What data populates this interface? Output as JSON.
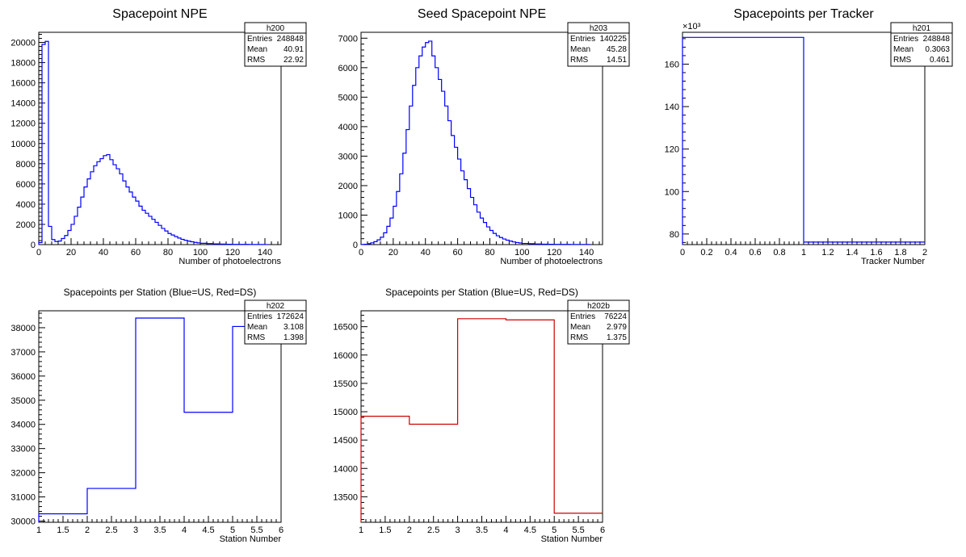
{
  "chart_data": [
    {
      "type": "histogram",
      "title": "Spacepoint NPE",
      "xlabel": "Number of photoelectrons",
      "ylabel": "",
      "xlim": [
        0,
        150
      ],
      "ylim": [
        0,
        21000
      ],
      "xticks": [
        0,
        20,
        40,
        60,
        80,
        100,
        120,
        140
      ],
      "yticks": [
        0,
        2000,
        4000,
        6000,
        8000,
        10000,
        12000,
        14000,
        16000,
        18000,
        20000
      ],
      "color": "#0000ff",
      "stats": {
        "name": "h200",
        "rows": [
          [
            "Entries",
            "248848"
          ],
          [
            "Mean",
            "40.91"
          ],
          [
            "RMS",
            "22.92"
          ]
        ]
      },
      "series": [
        {
          "x": [
            0,
            2,
            4,
            6,
            8,
            10,
            12,
            14,
            16,
            18,
            20,
            22,
            24,
            26,
            28,
            30,
            32,
            34,
            36,
            38,
            40,
            42,
            44,
            46,
            48,
            50,
            52,
            54,
            56,
            58,
            60,
            62,
            64,
            66,
            68,
            70,
            72,
            74,
            76,
            78,
            80,
            82,
            84,
            86,
            88,
            90,
            92,
            94,
            96,
            98,
            100,
            104,
            108,
            112,
            116,
            120,
            130,
            140
          ],
          "values": [
            200,
            19800,
            20100,
            1800,
            500,
            300,
            350,
            600,
            900,
            1400,
            2000,
            2800,
            3700,
            4700,
            5700,
            6500,
            7200,
            7800,
            8200,
            8500,
            8800,
            8900,
            8400,
            7900,
            7500,
            7000,
            6300,
            5700,
            5200,
            4700,
            4300,
            3800,
            3400,
            3100,
            2800,
            2500,
            2200,
            1900,
            1600,
            1350,
            1100,
            950,
            800,
            650,
            520,
            430,
            350,
            280,
            220,
            170,
            130,
            100,
            70,
            50,
            30,
            20,
            10,
            5
          ],
          "binwidth": 2
        }
      ]
    },
    {
      "type": "histogram",
      "title": "Seed Spacepoint NPE",
      "xlabel": "Number of photoelectrons",
      "ylabel": "",
      "xlim": [
        0,
        150
      ],
      "ylim": [
        0,
        7200
      ],
      "xticks": [
        0,
        20,
        40,
        60,
        80,
        100,
        120,
        140
      ],
      "yticks": [
        0,
        1000,
        2000,
        3000,
        4000,
        5000,
        6000,
        7000
      ],
      "color": "#0000ff",
      "stats": {
        "name": "h203",
        "rows": [
          [
            "Entries",
            "140225"
          ],
          [
            "Mean",
            "45.28"
          ],
          [
            "RMS",
            "14.51"
          ]
        ]
      },
      "series": [
        {
          "x": [
            0,
            2,
            4,
            6,
            8,
            10,
            12,
            14,
            16,
            18,
            20,
            22,
            24,
            26,
            28,
            30,
            32,
            34,
            36,
            38,
            40,
            42,
            44,
            46,
            48,
            50,
            52,
            54,
            56,
            58,
            60,
            62,
            64,
            66,
            68,
            70,
            72,
            74,
            76,
            78,
            80,
            82,
            84,
            86,
            88,
            90,
            92,
            94,
            96,
            98,
            100,
            104,
            108,
            112,
            116,
            120,
            130,
            140
          ],
          "values": [
            5,
            10,
            30,
            60,
            100,
            160,
            250,
            400,
            620,
            900,
            1300,
            1800,
            2400,
            3100,
            3900,
            4700,
            5400,
            6000,
            6400,
            6700,
            6850,
            6900,
            6400,
            6000,
            5600,
            5200,
            4700,
            4200,
            3700,
            3300,
            2900,
            2500,
            2200,
            1900,
            1600,
            1350,
            1100,
            900,
            750,
            600,
            480,
            380,
            300,
            240,
            190,
            150,
            120,
            90,
            70,
            55,
            40,
            30,
            20,
            15,
            10,
            8,
            5,
            3
          ],
          "binwidth": 2
        }
      ]
    },
    {
      "type": "histogram",
      "title": "Spacepoints per Tracker",
      "xlabel": "Tracker Number",
      "ylabel": "",
      "xlim": [
        0,
        2
      ],
      "ylim": [
        75,
        175
      ],
      "xticks": [
        0,
        0.2,
        0.4,
        0.6,
        0.8,
        1,
        1.2,
        1.4,
        1.6,
        1.8,
        2
      ],
      "yticks": [
        80,
        100,
        120,
        140,
        160
      ],
      "yexponent": "×10³",
      "color": "#0000ff",
      "stats": {
        "name": "h201",
        "rows": [
          [
            "Entries",
            "248848"
          ],
          [
            "Mean",
            "0.3063"
          ],
          [
            "RMS",
            "0.461"
          ]
        ]
      },
      "series": [
        {
          "x": [
            0,
            1
          ],
          "values": [
            172.6,
            76.2
          ],
          "binwidth": 1
        }
      ]
    },
    {
      "type": "histogram",
      "title": "Spacepoints per Station (Blue=US, Red=DS)",
      "xlabel": "Station Number",
      "ylabel": "",
      "xlim": [
        1,
        6
      ],
      "ylim": [
        29950,
        38700
      ],
      "xticks": [
        1,
        1.5,
        2,
        2.5,
        3,
        3.5,
        4,
        4.5,
        5,
        5.5,
        6
      ],
      "yticks": [
        30000,
        31000,
        32000,
        33000,
        34000,
        35000,
        36000,
        37000,
        38000
      ],
      "color": "#0000ff",
      "stats": {
        "name": "h202",
        "rows": [
          [
            "Entries",
            "172624"
          ],
          [
            "Mean",
            "3.108"
          ],
          [
            "RMS",
            "1.398"
          ]
        ]
      },
      "series": [
        {
          "x": [
            1,
            2,
            3,
            4,
            5
          ],
          "values": [
            30300,
            31350,
            38400,
            34500,
            38050
          ],
          "binwidth": 1
        }
      ]
    },
    {
      "type": "histogram",
      "title": "Spacepoints per Station (Blue=US, Red=DS)",
      "xlabel": "Station Number",
      "ylabel": "",
      "xlim": [
        1,
        6
      ],
      "ylim": [
        13050,
        16780
      ],
      "xticks": [
        1,
        1.5,
        2,
        2.5,
        3,
        3.5,
        4,
        4.5,
        5,
        5.5,
        6
      ],
      "yticks": [
        13500,
        14000,
        14500,
        15000,
        15500,
        16000,
        16500
      ],
      "color": "#cc0000",
      "stats": {
        "name": "h202b",
        "rows": [
          [
            "Entries",
            "76224"
          ],
          [
            "Mean",
            "2.979"
          ],
          [
            "RMS",
            "1.375"
          ]
        ]
      },
      "series": [
        {
          "x": [
            1,
            2,
            3,
            4,
            5
          ],
          "values": [
            14920,
            14780,
            16640,
            16620,
            13210
          ],
          "binwidth": 1
        }
      ]
    }
  ]
}
